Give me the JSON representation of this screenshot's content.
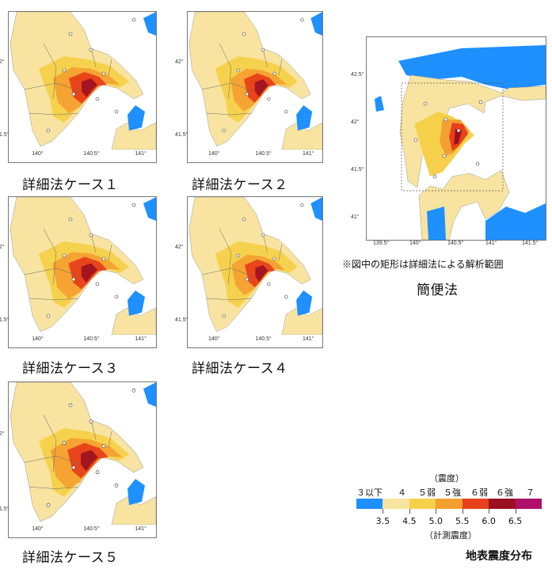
{
  "panels": [
    {
      "caption": "詳細法ケース１",
      "lat_ticks": [
        "42°",
        "41.5°"
      ],
      "lon_ticks": [
        "140°",
        "140.5°",
        "141°"
      ]
    },
    {
      "caption": "詳細法ケース２",
      "lat_ticks": [
        "42°",
        "41.5°"
      ],
      "lon_ticks": [
        "140°",
        "140.5°",
        "141°"
      ]
    },
    {
      "caption": "詳細法ケース３",
      "lat_ticks": [
        "42°",
        "41.5°"
      ],
      "lon_ticks": [
        "140°",
        "140.5°",
        "141°"
      ]
    },
    {
      "caption": "詳細法ケース４",
      "lat_ticks": [
        "42°",
        "41.5°"
      ],
      "lon_ticks": [
        "140°",
        "140.5°",
        "141°"
      ]
    },
    {
      "caption": "詳細法ケース５",
      "lat_ticks": [
        "42°",
        "41.5°"
      ],
      "lon_ticks": [
        "140°",
        "140.5°",
        "141°"
      ]
    }
  ],
  "simple": {
    "caption": "簡便法",
    "note": "※図中の矩形は詳細法による解析範囲",
    "lat_ticks": [
      "42.5°",
      "42°",
      "41.5°",
      "41°"
    ],
    "lon_ticks": [
      "139.5°",
      "140°",
      "140.5°",
      "141°",
      "141.5°"
    ]
  },
  "legend": {
    "header": "（震度）",
    "classes": [
      "３以下",
      "４",
      "５弱",
      "５強",
      "６弱",
      "６強",
      "７"
    ],
    "colors": [
      "#1e90ff",
      "#f8e4a0",
      "#f6d04a",
      "#f4a030",
      "#e8401a",
      "#9b1020",
      "#b0106a"
    ],
    "values": [
      "3.5",
      "4.5",
      "5.0",
      "5.5",
      "6.0",
      "6.5"
    ],
    "footer": "（計測震度）"
  },
  "title": "地表震度分布"
}
